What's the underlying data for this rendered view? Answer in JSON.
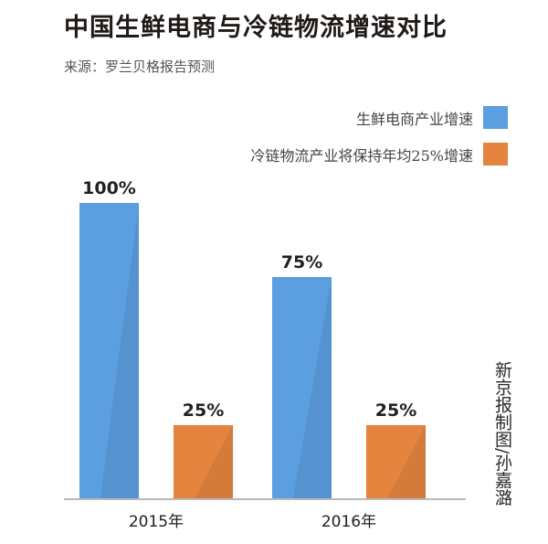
{
  "chart_data": {
    "type": "bar",
    "title": "中国生鲜电商与冷链物流增速对比",
    "subtitle": "来源：罗兰贝格报告预测",
    "categories": [
      "2015年",
      "2016年"
    ],
    "series": [
      {
        "name": "生鲜电商产业增速",
        "values": [
          100,
          75
        ],
        "labels": [
          "100%",
          "75%"
        ],
        "color": "#5b9fe0"
      },
      {
        "name": "冷链物流产业将保持年均25%增速",
        "values": [
          25,
          25
        ],
        "labels": [
          "25%",
          "25%"
        ],
        "color": "#e5843f"
      }
    ],
    "ylim": [
      0,
      100
    ],
    "grid": false,
    "legend": "top-right"
  },
  "credit": "新京报制图/孙嘉潞"
}
